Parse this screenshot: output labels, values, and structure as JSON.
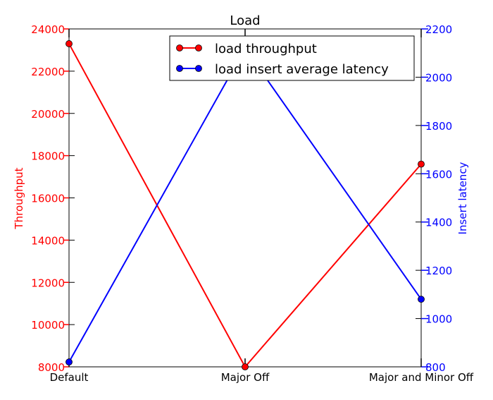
{
  "chart_data": {
    "type": "line",
    "title": "Load",
    "categories": [
      "Default",
      "Major Off",
      "Major and Minor Off"
    ],
    "ylabel_left": "Throughput",
    "ylabel_right": "Insert latency",
    "ylim_left": [
      8000,
      24000
    ],
    "ylim_right": [
      800,
      2200
    ],
    "yticks_left": [
      8000,
      10000,
      12000,
      14000,
      16000,
      18000,
      20000,
      22000,
      24000
    ],
    "yticks_right": [
      800,
      1000,
      1200,
      1400,
      1600,
      1800,
      2000,
      2200
    ],
    "legend_position": "top-right",
    "grid": false,
    "series": [
      {
        "name": "load throughput",
        "axis": "left",
        "color": "#ff0000",
        "values": [
          23300,
          8000,
          17600
        ]
      },
      {
        "name": "load insert average latency",
        "axis": "right",
        "color": "#0000ff",
        "values": [
          820,
          2120,
          1080
        ]
      }
    ]
  }
}
